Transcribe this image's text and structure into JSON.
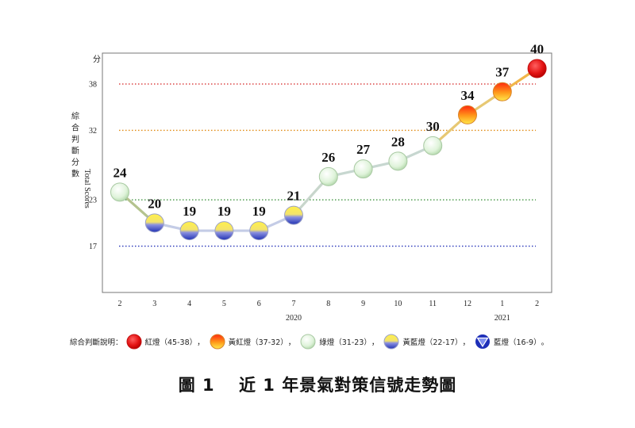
{
  "chart_data": {
    "type": "line",
    "title": "",
    "ylabel_cn": "綜合判斷分數",
    "ylabel_en": "Total Scores",
    "yunit": "分",
    "ylim": [
      11,
      42
    ],
    "yticks": [
      17,
      23,
      32,
      38
    ],
    "categories": [
      "2",
      "3",
      "4",
      "5",
      "6",
      "7",
      "8",
      "9",
      "10",
      "11",
      "12",
      "1",
      "2"
    ],
    "values": [
      24,
      20,
      19,
      19,
      19,
      21,
      26,
      27,
      28,
      30,
      34,
      37,
      40
    ],
    "signals": [
      "green",
      "yellow-blue",
      "yellow-blue",
      "yellow-blue",
      "yellow-blue",
      "yellow-blue",
      "green",
      "green",
      "green",
      "green",
      "yellow-red",
      "yellow-red",
      "red"
    ],
    "year_labels": [
      {
        "label": "2020",
        "under_index": 5
      },
      {
        "label": "2021",
        "under_index": 11
      }
    ],
    "thresholds": [
      {
        "value": 38,
        "color": "#d42020"
      },
      {
        "value": 32,
        "color": "#e08a10"
      },
      {
        "value": 23,
        "color": "#2f8a2f"
      },
      {
        "value": 17,
        "color": "#2633b8"
      }
    ]
  },
  "legend": {
    "prefix": "綜合判斷說明：",
    "items": [
      {
        "kind": "red",
        "label": "紅燈（45-38）"
      },
      {
        "kind": "yellow-red",
        "label": "黃紅燈（37-32）"
      },
      {
        "kind": "green",
        "label": "綠燈（31-23）"
      },
      {
        "kind": "yellow-blue",
        "label": "黃藍燈（22-17）"
      },
      {
        "kind": "blue",
        "label": "藍燈（16-9）"
      }
    ],
    "separator": "，",
    "terminator": "。"
  },
  "caption": {
    "number": "圖 1",
    "text": "近 1 年景氣對策信號走勢圖"
  },
  "colors": {
    "red": "#e01818",
    "yellow_red_top": "#ff3a10",
    "yellow_red_bottom": "#ffe23a",
    "green": "#e6f7e1",
    "yellow_blue_top": "#ffe83a",
    "yellow_blue_bottom": "#2a3fc0",
    "blue": "#1e2fb8",
    "line_low": "#c6d3e5",
    "line_high": "#e8c24a"
  }
}
